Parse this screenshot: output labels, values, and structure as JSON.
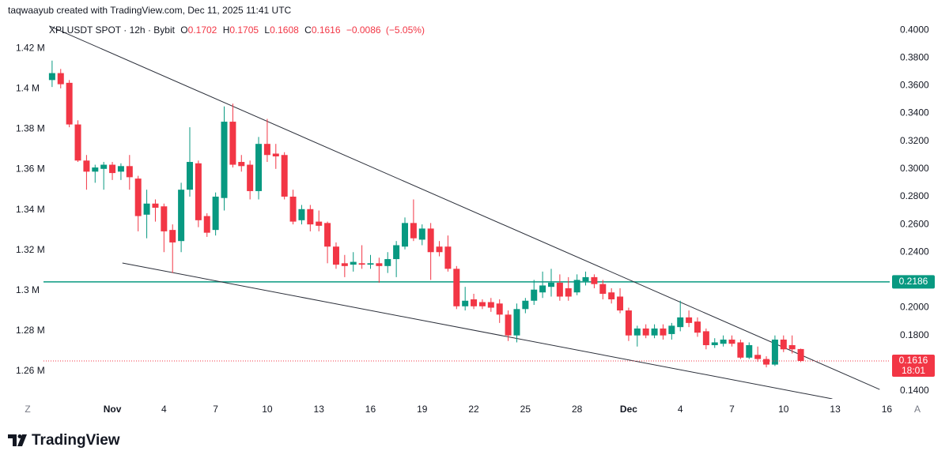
{
  "header": "taqwaayub created with TradingView.com, Dec 11, 2025 11:41 UTC",
  "controls": [
    "Z",
    "A"
  ],
  "brand": "TradingView",
  "chart_data": {
    "type": "candlestick",
    "symbol": "XPLUSDT SPOT · 12h · Bybit",
    "ohlc_labels": [
      "O",
      "H",
      "L",
      "C"
    ],
    "change": "−0.0086",
    "change_pct": "(−5.05%)",
    "countdown": "18:01",
    "up_color": "#089981",
    "down_color": "#f23645",
    "grid": false,
    "x": [
      "2025-10-28 12:00",
      "2025-10-29 00:00",
      "2025-10-29 12:00",
      "2025-10-30 00:00",
      "2025-10-30 12:00",
      "2025-10-31 00:00",
      "2025-10-31 12:00",
      "2025-11-01 00:00",
      "2025-11-01 12:00",
      "2025-11-02 00:00",
      "2025-11-02 12:00",
      "2025-11-03 00:00",
      "2025-11-03 12:00",
      "2025-11-04 00:00",
      "2025-11-04 12:00",
      "2025-11-05 00:00",
      "2025-11-05 12:00",
      "2025-11-06 00:00",
      "2025-11-06 12:00",
      "2025-11-07 00:00",
      "2025-11-07 12:00",
      "2025-11-08 00:00",
      "2025-11-08 12:00",
      "2025-11-09 00:00",
      "2025-11-09 12:00",
      "2025-11-10 00:00",
      "2025-11-10 12:00",
      "2025-11-11 00:00",
      "2025-11-11 12:00",
      "2025-11-12 00:00",
      "2025-11-12 12:00",
      "2025-11-13 00:00",
      "2025-11-13 12:00",
      "2025-11-14 00:00",
      "2025-11-14 12:00",
      "2025-11-15 00:00",
      "2025-11-15 12:00",
      "2025-11-16 00:00",
      "2025-11-16 12:00",
      "2025-11-17 00:00",
      "2025-11-17 12:00",
      "2025-11-18 00:00",
      "2025-11-18 12:00",
      "2025-11-19 00:00",
      "2025-11-19 12:00",
      "2025-11-20 00:00",
      "2025-11-20 12:00",
      "2025-11-21 00:00",
      "2025-11-21 12:00",
      "2025-11-22 00:00",
      "2025-11-22 12:00",
      "2025-11-23 00:00",
      "2025-11-23 12:00",
      "2025-11-24 00:00",
      "2025-11-24 12:00",
      "2025-11-25 00:00",
      "2025-11-25 12:00",
      "2025-11-26 00:00",
      "2025-11-26 12:00",
      "2025-11-27 00:00",
      "2025-11-27 12:00",
      "2025-11-28 00:00",
      "2025-11-28 12:00",
      "2025-11-29 00:00",
      "2025-11-29 12:00",
      "2025-11-30 00:00",
      "2025-11-30 12:00",
      "2025-12-01 00:00",
      "2025-12-01 12:00",
      "2025-12-02 00:00",
      "2025-12-02 12:00",
      "2025-12-03 00:00",
      "2025-12-03 12:00",
      "2025-12-04 00:00",
      "2025-12-04 12:00",
      "2025-12-05 00:00",
      "2025-12-05 12:00",
      "2025-12-06 00:00",
      "2025-12-06 12:00",
      "2025-12-07 00:00",
      "2025-12-07 12:00",
      "2025-12-08 00:00",
      "2025-12-08 12:00",
      "2025-12-09 00:00",
      "2025-12-09 12:00",
      "2025-12-10 00:00",
      "2025-12-10 12:00",
      "2025-12-11 00:00"
    ],
    "open": [
      0.364,
      0.369,
      0.362,
      0.332,
      0.306,
      0.298,
      0.3,
      0.303,
      0.298,
      0.302,
      0.293,
      0.267,
      0.275,
      0.273,
      0.256,
      0.248,
      0.285,
      0.304,
      0.266,
      0.256,
      0.279,
      0.334,
      0.305,
      0.303,
      0.284,
      0.318,
      0.311,
      0.31,
      0.28,
      0.263,
      0.271,
      0.262,
      0.261,
      0.244,
      0.232,
      0.231,
      0.232,
      0.231,
      0.232,
      0.23,
      0.235,
      0.244,
      0.261,
      0.249,
      0.257,
      0.244,
      0.244,
      0.228,
      0.201,
      0.206,
      0.204,
      0.204,
      0.203,
      0.195,
      0.18,
      0.199,
      0.205,
      0.211,
      0.215,
      0.218,
      0.214,
      0.211,
      0.219,
      0.222,
      0.217,
      0.211,
      0.208,
      0.198,
      0.18,
      0.185,
      0.18,
      0.185,
      0.181,
      0.186,
      0.193,
      0.19,
      0.183,
      0.173,
      0.174,
      0.177,
      0.175,
      0.164,
      0.166,
      0.163,
      0.159,
      0.177,
      0.173,
      0.1702
    ],
    "high": [
      0.378,
      0.372,
      0.364,
      0.335,
      0.31,
      0.303,
      0.305,
      0.305,
      0.304,
      0.31,
      0.295,
      0.285,
      0.278,
      0.275,
      0.26,
      0.29,
      0.33,
      0.306,
      0.268,
      0.283,
      0.345,
      0.347,
      0.31,
      0.306,
      0.323,
      0.336,
      0.318,
      0.312,
      0.285,
      0.274,
      0.274,
      0.27,
      0.262,
      0.247,
      0.238,
      0.24,
      0.245,
      0.238,
      0.236,
      0.24,
      0.248,
      0.265,
      0.278,
      0.26,
      0.261,
      0.248,
      0.252,
      0.23,
      0.215,
      0.21,
      0.206,
      0.207,
      0.206,
      0.198,
      0.203,
      0.207,
      0.22,
      0.226,
      0.228,
      0.224,
      0.222,
      0.224,
      0.226,
      0.224,
      0.22,
      0.214,
      0.214,
      0.2,
      0.187,
      0.188,
      0.188,
      0.188,
      0.189,
      0.205,
      0.198,
      0.193,
      0.185,
      0.178,
      0.18,
      0.18,
      0.177,
      0.175,
      0.172,
      0.165,
      0.18,
      0.18,
      0.18,
      0.1705
    ],
    "low": [
      0.359,
      0.358,
      0.33,
      0.305,
      0.285,
      0.29,
      0.285,
      0.292,
      0.292,
      0.285,
      0.255,
      0.25,
      0.262,
      0.24,
      0.225,
      0.24,
      0.28,
      0.258,
      0.251,
      0.252,
      0.27,
      0.301,
      0.298,
      0.278,
      0.278,
      0.305,
      0.3,
      0.278,
      0.26,
      0.26,
      0.255,
      0.255,
      0.232,
      0.228,
      0.222,
      0.226,
      0.228,
      0.228,
      0.218,
      0.225,
      0.222,
      0.242,
      0.248,
      0.245,
      0.22,
      0.237,
      0.226,
      0.199,
      0.198,
      0.199,
      0.199,
      0.197,
      0.189,
      0.176,
      0.175,
      0.196,
      0.202,
      0.207,
      0.208,
      0.205,
      0.205,
      0.209,
      0.216,
      0.214,
      0.206,
      0.203,
      0.196,
      0.176,
      0.172,
      0.178,
      0.178,
      0.177,
      0.177,
      0.183,
      0.186,
      0.179,
      0.17,
      0.171,
      0.172,
      0.172,
      0.163,
      0.163,
      0.161,
      0.157,
      0.158,
      0.168,
      0.167,
      0.1608
    ],
    "close": [
      0.369,
      0.361,
      0.332,
      0.306,
      0.298,
      0.301,
      0.303,
      0.297,
      0.302,
      0.294,
      0.266,
      0.275,
      0.272,
      0.255,
      0.247,
      0.285,
      0.305,
      0.263,
      0.254,
      0.28,
      0.334,
      0.303,
      0.302,
      0.284,
      0.318,
      0.31,
      0.309,
      0.28,
      0.262,
      0.271,
      0.26,
      0.259,
      0.244,
      0.231,
      0.23,
      0.233,
      0.231,
      0.232,
      0.23,
      0.235,
      0.245,
      0.261,
      0.25,
      0.257,
      0.24,
      0.24,
      0.228,
      0.201,
      0.205,
      0.201,
      0.201,
      0.2,
      0.195,
      0.18,
      0.199,
      0.205,
      0.213,
      0.216,
      0.218,
      0.208,
      0.208,
      0.22,
      0.222,
      0.217,
      0.21,
      0.206,
      0.198,
      0.18,
      0.185,
      0.18,
      0.185,
      0.18,
      0.187,
      0.193,
      0.189,
      0.182,
      0.173,
      0.175,
      0.177,
      0.174,
      0.164,
      0.173,
      0.163,
      0.159,
      0.177,
      0.17,
      0.17,
      0.1616
    ],
    "xlim": [
      "2025-10-28 00:00",
      "2025-12-16 04:00"
    ],
    "xticks": [
      {
        "value": "2025-11-01",
        "label": "Nov"
      },
      {
        "value": "2025-11-04",
        "label": "4"
      },
      {
        "value": "2025-11-07",
        "label": "7"
      },
      {
        "value": "2025-11-10",
        "label": "10"
      },
      {
        "value": "2025-11-13",
        "label": "13"
      },
      {
        "value": "2025-11-16",
        "label": "16"
      },
      {
        "value": "2025-11-19",
        "label": "19"
      },
      {
        "value": "2025-11-22",
        "label": "22"
      },
      {
        "value": "2025-11-25",
        "label": "25"
      },
      {
        "value": "2025-11-28",
        "label": "28"
      },
      {
        "value": "2025-12-01",
        "label": "Dec"
      },
      {
        "value": "2025-12-04",
        "label": "4"
      },
      {
        "value": "2025-12-07",
        "label": "7"
      },
      {
        "value": "2025-12-10",
        "label": "10"
      },
      {
        "value": "2025-12-13",
        "label": "13"
      },
      {
        "value": "2025-12-16",
        "label": "16"
      }
    ],
    "ylim": [
      0.1343,
      0.4046
    ],
    "yticks": [
      {
        "value": 0.14,
        "label": "0.1400"
      },
      {
        "value": 0.16,
        "label": "0.1600"
      },
      {
        "value": 0.18,
        "label": "0.1800"
      },
      {
        "value": 0.2,
        "label": "0.2000"
      },
      {
        "value": 0.22,
        "label": "0.2200"
      },
      {
        "value": 0.24,
        "label": "0.2400"
      },
      {
        "value": 0.26,
        "label": "0.2600"
      },
      {
        "value": 0.28,
        "label": "0.2800"
      },
      {
        "value": 0.3,
        "label": "0.3000"
      },
      {
        "value": 0.32,
        "label": "0.3200"
      },
      {
        "value": 0.34,
        "label": "0.3400"
      },
      {
        "value": 0.36,
        "label": "0.3600"
      },
      {
        "value": 0.38,
        "label": "0.3800"
      },
      {
        "value": 0.4,
        "label": "0.4000"
      }
    ],
    "y2lim": [
      1246300,
      1432200
    ],
    "y2ticks": [
      {
        "value": 1260000,
        "label": "1.26 M"
      },
      {
        "value": 1280000,
        "label": "1.28 M"
      },
      {
        "value": 1300000,
        "label": "1.3 M"
      },
      {
        "value": 1320000,
        "label": "1.32 M"
      },
      {
        "value": 1340000,
        "label": "1.34 M"
      },
      {
        "value": 1360000,
        "label": "1.36 M"
      },
      {
        "value": 1380000,
        "label": "1.38 M"
      },
      {
        "value": 1400000,
        "label": "1.4 M"
      },
      {
        "value": 1420000,
        "label": "1.42 M"
      }
    ],
    "hline": {
      "value": 0.2186,
      "color": "#089981"
    },
    "trendline_color": "#2a2e39",
    "trendlines": [
      {
        "from": {
          "x": "2025-10-28 08:00",
          "y": 0.403
        },
        "to": {
          "x": "2025-12-15 14:00",
          "y": 0.1411
        }
      },
      {
        "from": {
          "x": "2025-11-01 14:00",
          "y": 0.2322
        },
        "to": {
          "x": "2025-12-12 20:00",
          "y": 0.1343
        }
      }
    ]
  }
}
